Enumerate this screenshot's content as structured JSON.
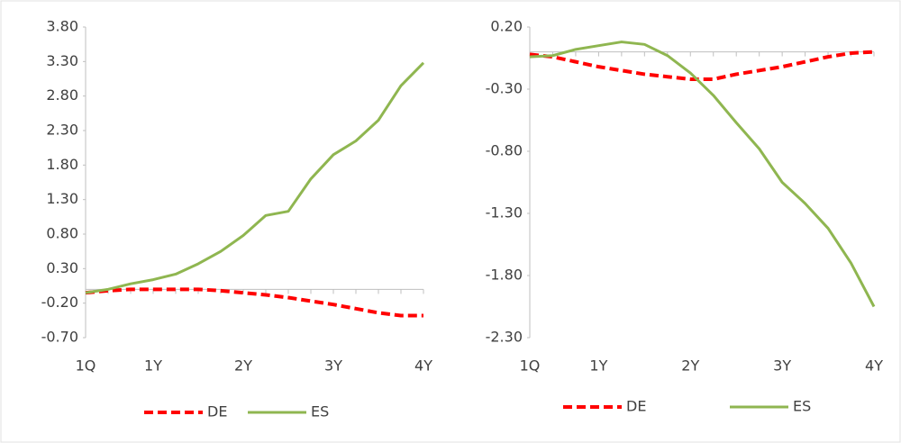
{
  "chart_data": [
    {
      "type": "line",
      "categories": [
        "1Q",
        null,
        null,
        "1Y",
        null,
        null,
        null,
        "2Y",
        null,
        null,
        null,
        "3Y",
        null,
        null,
        null,
        "4Y"
      ],
      "series": [
        {
          "name": "DE",
          "color": "#ff0000",
          "dashed": true,
          "values": [
            -0.05,
            -0.02,
            0,
            0,
            0,
            0,
            -0.02,
            -0.05,
            -0.08,
            -0.12,
            -0.17,
            -0.22,
            -0.28,
            -0.34,
            -0.38,
            -0.38
          ]
        },
        {
          "name": "ES",
          "color": "#8fb650",
          "dashed": false,
          "values": [
            -0.05,
            0,
            0.08,
            0.14,
            0.22,
            0.37,
            0.55,
            0.78,
            1.07,
            1.13,
            1.6,
            1.95,
            2.15,
            2.45,
            2.95,
            3.28
          ]
        }
      ],
      "ylim": [
        -0.7,
        3.8
      ],
      "yticks": [
        {
          "value": -0.7,
          "label": "-0.70"
        },
        {
          "value": -0.2,
          "label": "-0.20"
        },
        {
          "value": 0.3,
          "label": "0.30"
        },
        {
          "value": 0.8,
          "label": "0.80"
        },
        {
          "value": 1.3,
          "label": "1.30"
        },
        {
          "value": 1.8,
          "label": "1.80"
        },
        {
          "value": 2.3,
          "label": "2.30"
        },
        {
          "value": 2.8,
          "label": "2.80"
        },
        {
          "value": 3.3,
          "label": "3.30"
        },
        {
          "value": 3.8,
          "label": "3.80"
        }
      ]
    },
    {
      "type": "line",
      "categories": [
        "1Q",
        null,
        null,
        "1Y",
        null,
        null,
        null,
        "2Y",
        null,
        null,
        null,
        "3Y",
        null,
        null,
        null,
        "4Y"
      ],
      "series": [
        {
          "name": "DE",
          "color": "#ff0000",
          "dashed": true,
          "values": [
            -0.02,
            -0.04,
            -0.08,
            -0.12,
            -0.15,
            -0.18,
            -0.2,
            -0.22,
            -0.22,
            -0.18,
            -0.15,
            -0.12,
            -0.08,
            -0.04,
            -0.01,
            0.0
          ]
        },
        {
          "name": "ES",
          "color": "#8fb650",
          "dashed": false,
          "values": [
            -0.04,
            -0.03,
            0.02,
            0.05,
            0.08,
            0.06,
            -0.03,
            -0.17,
            -0.35,
            -0.57,
            -0.78,
            -1.05,
            -1.22,
            -1.42,
            -1.7,
            -2.05
          ]
        }
      ],
      "ylim": [
        -2.3,
        0.2
      ],
      "yticks": [
        {
          "value": -2.3,
          "label": "-2.30"
        },
        {
          "value": -1.8,
          "label": "-1.80"
        },
        {
          "value": -1.3,
          "label": "-1.30"
        },
        {
          "value": -0.8,
          "label": "-0.80"
        },
        {
          "value": -0.3,
          "label": "-0.30"
        },
        {
          "value": 0.2,
          "label": "0.20"
        }
      ]
    }
  ]
}
